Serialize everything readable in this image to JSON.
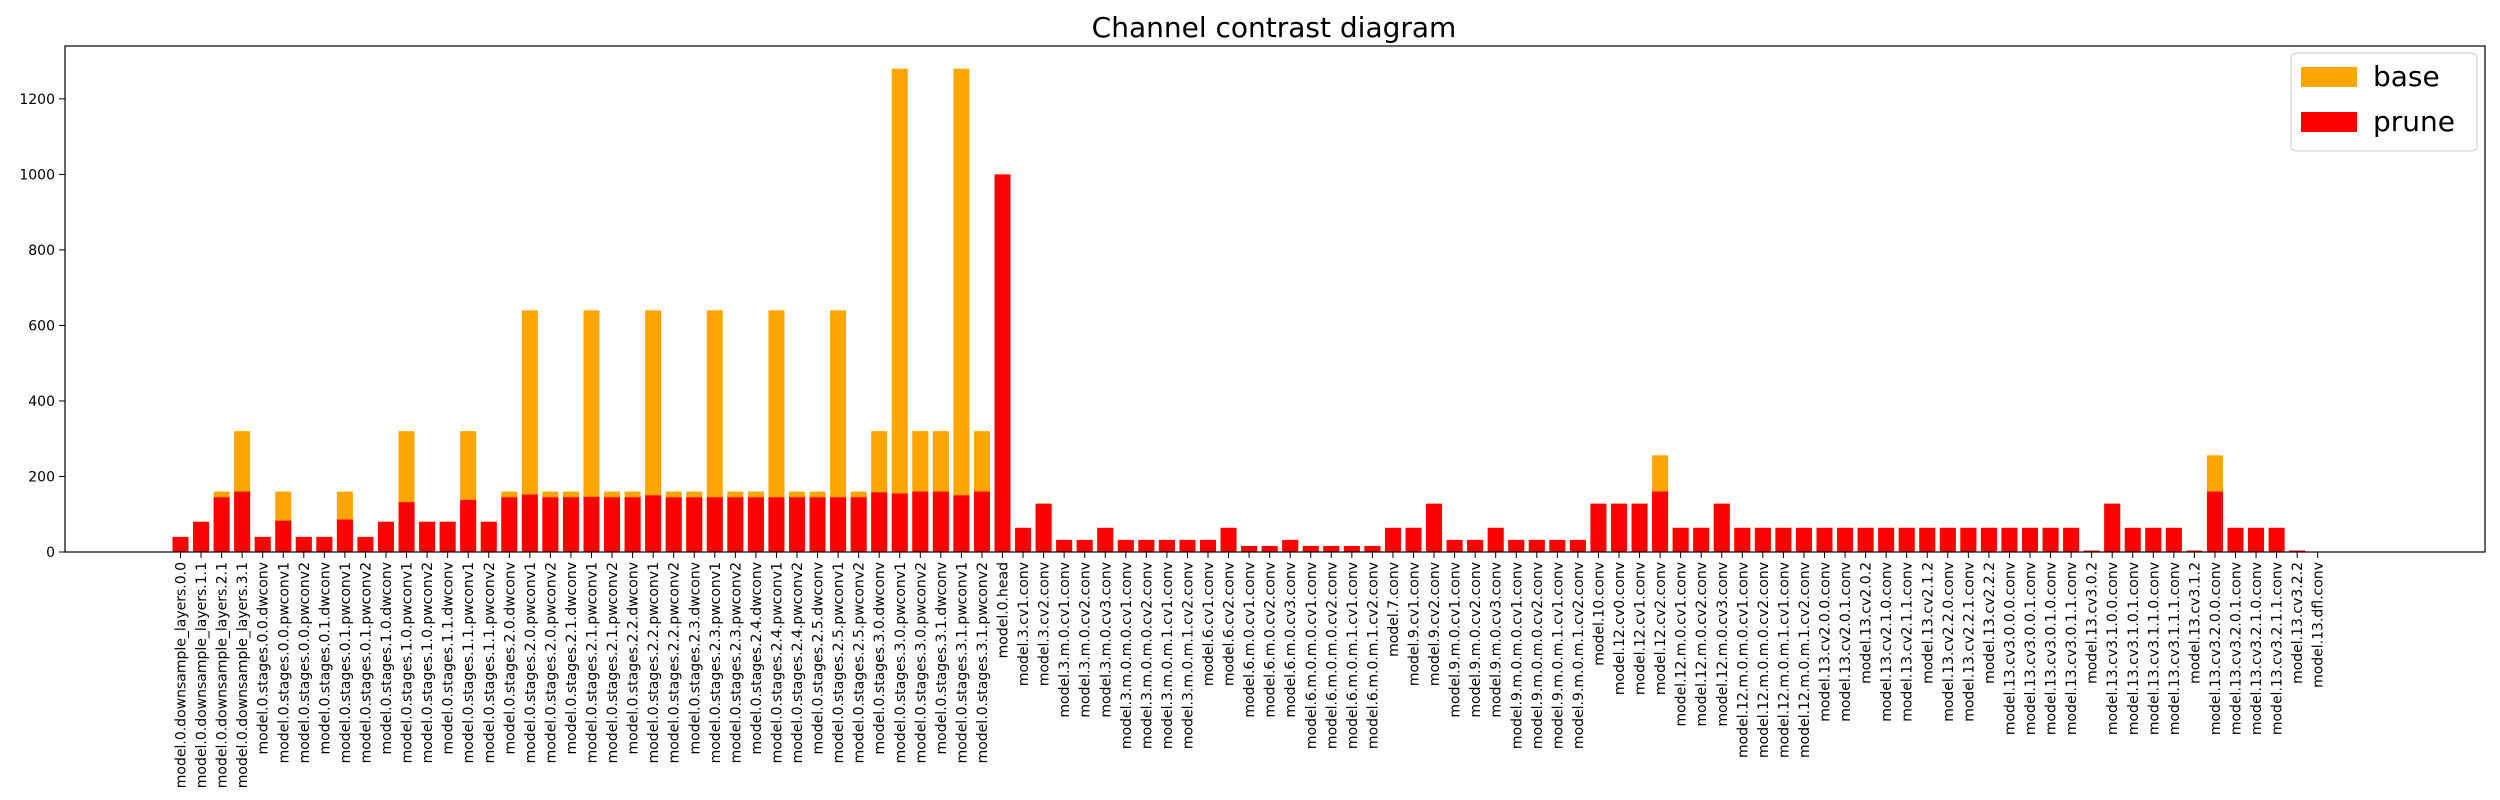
{
  "chart_data": {
    "type": "bar",
    "title": "Channel contrast diagram",
    "xlabel": "",
    "ylabel": "",
    "ylim": [
      0,
      1340
    ],
    "yticks": [
      0,
      200,
      400,
      600,
      800,
      1000,
      1200
    ],
    "grid": false,
    "legend_position": "top-right",
    "categories": [
      "model.0.downsample_layers.0.0",
      "model.0.downsample_layers.1.1",
      "model.0.downsample_layers.2.1",
      "model.0.downsample_layers.3.1",
      "model.0.stages.0.0.dwconv",
      "model.0.stages.0.0.pwconv1",
      "model.0.stages.0.0.pwconv2",
      "model.0.stages.0.1.dwconv",
      "model.0.stages.0.1.pwconv1",
      "model.0.stages.0.1.pwconv2",
      "model.0.stages.1.0.dwconv",
      "model.0.stages.1.0.pwconv1",
      "model.0.stages.1.0.pwconv2",
      "model.0.stages.1.1.dwconv",
      "model.0.stages.1.1.pwconv1",
      "model.0.stages.1.1.pwconv2",
      "model.0.stages.2.0.dwconv",
      "model.0.stages.2.0.pwconv1",
      "model.0.stages.2.0.pwconv2",
      "model.0.stages.2.1.dwconv",
      "model.0.stages.2.1.pwconv1",
      "model.0.stages.2.1.pwconv2",
      "model.0.stages.2.2.dwconv",
      "model.0.stages.2.2.pwconv1",
      "model.0.stages.2.2.pwconv2",
      "model.0.stages.2.3.dwconv",
      "model.0.stages.2.3.pwconv1",
      "model.0.stages.2.3.pwconv2",
      "model.0.stages.2.4.dwconv",
      "model.0.stages.2.4.pwconv1",
      "model.0.stages.2.4.pwconv2",
      "model.0.stages.2.5.dwconv",
      "model.0.stages.2.5.pwconv1",
      "model.0.stages.2.5.pwconv2",
      "model.0.stages.3.0.dwconv",
      "model.0.stages.3.0.pwconv1",
      "model.0.stages.3.0.pwconv2",
      "model.0.stages.3.1.dwconv",
      "model.0.stages.3.1.pwconv1",
      "model.0.stages.3.1.pwconv2",
      "model.0.head",
      "model.3.cv1.conv",
      "model.3.cv2.conv",
      "model.3.m.0.cv1.conv",
      "model.3.m.0.cv2.conv",
      "model.3.m.0.cv3.conv",
      "model.3.m.0.m.0.cv1.conv",
      "model.3.m.0.m.0.cv2.conv",
      "model.3.m.0.m.1.cv1.conv",
      "model.3.m.0.m.1.cv2.conv",
      "model.6.cv1.conv",
      "model.6.cv2.conv",
      "model.6.m.0.cv1.conv",
      "model.6.m.0.cv2.conv",
      "model.6.m.0.cv3.conv",
      "model.6.m.0.m.0.cv1.conv",
      "model.6.m.0.m.0.cv2.conv",
      "model.6.m.0.m.1.cv1.conv",
      "model.6.m.0.m.1.cv2.conv",
      "model.7.conv",
      "model.9.cv1.conv",
      "model.9.cv2.conv",
      "model.9.m.0.cv1.conv",
      "model.9.m.0.cv2.conv",
      "model.9.m.0.cv3.conv",
      "model.9.m.0.m.0.cv1.conv",
      "model.9.m.0.m.0.cv2.conv",
      "model.9.m.0.m.1.cv1.conv",
      "model.9.m.0.m.1.cv2.conv",
      "model.10.conv",
      "model.12.cv0.conv",
      "model.12.cv1.conv",
      "model.12.cv2.conv",
      "model.12.m.0.cv1.conv",
      "model.12.m.0.cv2.conv",
      "model.12.m.0.cv3.conv",
      "model.12.m.0.m.0.cv1.conv",
      "model.12.m.0.m.0.cv2.conv",
      "model.12.m.0.m.1.cv1.conv",
      "model.12.m.0.m.1.cv2.conv",
      "model.13.cv2.0.0.conv",
      "model.13.cv2.0.1.conv",
      "model.13.cv2.0.2",
      "model.13.cv2.1.0.conv",
      "model.13.cv2.1.1.conv",
      "model.13.cv2.1.2",
      "model.13.cv2.2.0.conv",
      "model.13.cv2.2.1.conv",
      "model.13.cv2.2.2",
      "model.13.cv3.0.0.0.conv",
      "model.13.cv3.0.0.1.conv",
      "model.13.cv3.0.1.0.conv",
      "model.13.cv3.0.1.1.conv",
      "model.13.cv3.0.2",
      "model.13.cv3.1.0.0.conv",
      "model.13.cv3.1.0.1.conv",
      "model.13.cv3.1.1.0.conv",
      "model.13.cv3.1.1.1.conv",
      "model.13.cv3.1.2",
      "model.13.cv3.2.0.0.conv",
      "model.13.cv3.2.0.1.conv",
      "model.13.cv3.2.1.0.conv",
      "model.13.cv3.2.1.1.conv",
      "model.13.cv3.2.2",
      "model.13.dfl.conv"
    ],
    "series": [
      {
        "name": "base",
        "color": "#ffa500",
        "values": [
          40,
          80,
          160,
          320,
          40,
          160,
          40,
          40,
          160,
          40,
          80,
          320,
          80,
          80,
          320,
          80,
          160,
          640,
          160,
          160,
          640,
          160,
          160,
          640,
          160,
          160,
          640,
          160,
          160,
          640,
          160,
          160,
          640,
          160,
          320,
          1280,
          320,
          320,
          1280,
          320,
          1000,
          64,
          128,
          32,
          32,
          64,
          32,
          32,
          32,
          32,
          32,
          64,
          16,
          16,
          32,
          16,
          16,
          16,
          16,
          64,
          64,
          128,
          32,
          32,
          64,
          32,
          32,
          32,
          32,
          128,
          128,
          128,
          256,
          64,
          64,
          128,
          64,
          64,
          64,
          64,
          64,
          64,
          64,
          64,
          64,
          64,
          64,
          64,
          64,
          64,
          64,
          64,
          64,
          4,
          128,
          64,
          64,
          64,
          4,
          256,
          64,
          64,
          64,
          4,
          1
        ]
      },
      {
        "name": "prune",
        "color": "#ff0000",
        "values": [
          40,
          80,
          145,
          160,
          40,
          83,
          40,
          40,
          86,
          40,
          80,
          132,
          80,
          80,
          138,
          80,
          145,
          152,
          145,
          145,
          146,
          145,
          145,
          150,
          145,
          145,
          145,
          145,
          145,
          145,
          145,
          145,
          145,
          145,
          158,
          155,
          160,
          160,
          150,
          160,
          1000,
          64,
          128,
          32,
          32,
          64,
          32,
          32,
          32,
          32,
          32,
          64,
          16,
          16,
          32,
          16,
          16,
          16,
          16,
          64,
          64,
          128,
          32,
          32,
          64,
          32,
          32,
          32,
          32,
          128,
          128,
          128,
          160,
          64,
          64,
          128,
          64,
          64,
          64,
          64,
          64,
          64,
          64,
          64,
          64,
          64,
          64,
          64,
          64,
          64,
          64,
          64,
          64,
          4,
          128,
          64,
          64,
          64,
          4,
          160,
          64,
          64,
          64,
          4,
          1
        ]
      }
    ]
  }
}
